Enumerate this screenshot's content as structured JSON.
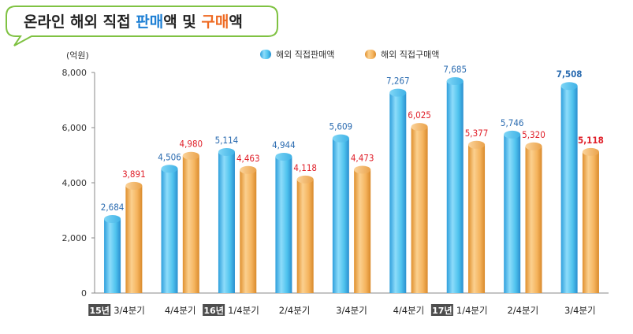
{
  "title": {
    "part1": "온라인 해외 직접 ",
    "part2": "판매",
    "part3": "액 및 ",
    "part4": "구매",
    "part5": "액"
  },
  "unit": "(억원)",
  "colors": {
    "sales": "#4fc3ee",
    "purchase": "#f5b45e",
    "sales_label": "#2a6bb0",
    "purchase_label": "#e0202a",
    "title_blue": "#1d7fd4",
    "title_orange": "#ee6a22",
    "year_badge": "#4d4d4d",
    "callout_border": "#7fc242"
  },
  "chart_data": {
    "type": "bar",
    "ylim": [
      0,
      8000
    ],
    "yticks": [
      "8,000",
      "6,000",
      "4,000",
      "2,000",
      "0"
    ],
    "ytick_values": [
      8000,
      6000,
      4000,
      2000,
      0
    ],
    "categories": [
      "3/4분기",
      "4/4분기",
      "1/4분기",
      "2/4분기",
      "3/4분기",
      "4/4분기",
      "1/4분기",
      "2/4분기",
      "3/4분기"
    ],
    "year_markers": [
      "15년",
      "",
      "16년",
      "",
      "",
      "",
      "17년",
      "",
      ""
    ],
    "series": [
      {
        "name": "해외 직접판매액",
        "values": [
          2684,
          4506,
          5114,
          4944,
          5609,
          7267,
          7685,
          5746,
          7508
        ],
        "labels": [
          "2,684",
          "4,506",
          "5,114",
          "4,944",
          "5,609",
          "7,267",
          "7,685",
          "5,746",
          "7,508"
        ]
      },
      {
        "name": "해외 직접구매액",
        "values": [
          3891,
          4980,
          4463,
          4118,
          4473,
          6025,
          5377,
          5320,
          5118
        ],
        "labels": [
          "3,891",
          "4,980",
          "4,463",
          "4,118",
          "4,473",
          "6,025",
          "5,377",
          "5,320",
          "5,118"
        ]
      }
    ],
    "legend": "top-center",
    "grid": false
  }
}
